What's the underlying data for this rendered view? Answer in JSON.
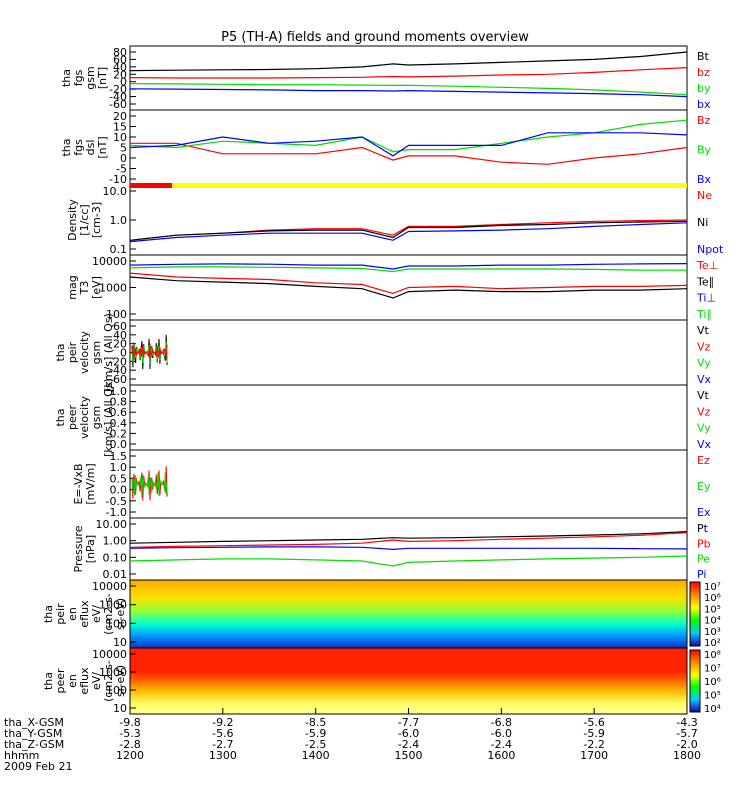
{
  "title": "P5 (TH-A) fields and ground moments overview",
  "date_label": "2009 Feb 21",
  "time_axis": {
    "ticks": [
      "1200",
      "1300",
      "1400",
      "1500",
      "1600",
      "1700",
      "1800"
    ],
    "rows": [
      {
        "name": "tha_X-GSM",
        "values": [
          "-9.8",
          "-9.2",
          "-8.5",
          "-7.7",
          "-6.8",
          "-5.6",
          "-4.3"
        ]
      },
      {
        "name": "tha_Y-GSM",
        "values": [
          "-5.3",
          "-5.6",
          "-5.9",
          "-6.0",
          "-6.0",
          "-5.9",
          "-5.7"
        ]
      },
      {
        "name": "tha_Z-GSM",
        "values": [
          "-2.8",
          "-2.7",
          "-2.5",
          "-2.4",
          "-2.4",
          "-2.2",
          "-2.0"
        ]
      },
      {
        "name": "hhmm",
        "values": []
      }
    ]
  },
  "colors": {
    "black": "#000000",
    "red": "#ff0000",
    "green": "#00dd00",
    "blue": "#0000ff",
    "yellow": "#ffff00"
  },
  "panels": [
    {
      "id": "fgs-gsm",
      "ylabel": [
        "tha",
        "fgs",
        "gsm",
        "[nT]"
      ],
      "ticks": [
        "80",
        "60",
        "40",
        "20",
        "0",
        "-20",
        "-40",
        "-60"
      ],
      "legend": [
        {
          "t": "Bt",
          "c": "black"
        },
        {
          "t": "bz",
          "c": "red"
        },
        {
          "t": "by",
          "c": "green"
        },
        {
          "t": "bx",
          "c": "blue"
        }
      ]
    },
    {
      "id": "fgs-dsl",
      "ylabel": [
        "tha",
        "fgs",
        "dsl",
        "[nT]"
      ],
      "ticks": [
        "20",
        "15",
        "10",
        "5",
        "0",
        "-5",
        "-10"
      ],
      "legend": [
        {
          "t": "Bz",
          "c": "red"
        },
        {
          "t": "By",
          "c": "green"
        },
        {
          "t": "Bx",
          "c": "blue"
        }
      ]
    },
    {
      "id": "density",
      "ylabel": [
        "Density",
        "[1/cc]",
        "[cm-3]"
      ],
      "ticks": [
        "10.0",
        "1.0",
        "0.1"
      ],
      "legend": [
        {
          "t": "Ne",
          "c": "red"
        },
        {
          "t": "Ni",
          "c": "black"
        },
        {
          "t": "Npot",
          "c": "blue"
        }
      ]
    },
    {
      "id": "temp",
      "ylabel": [
        "mag",
        "T3",
        "[eV]"
      ],
      "ticks": [
        "10000",
        "1000",
        "100"
      ],
      "legend": [
        {
          "t": "Te⊥",
          "c": "red"
        },
        {
          "t": "Te∥",
          "c": "black"
        },
        {
          "t": "Ti⊥",
          "c": "blue"
        },
        {
          "t": "Ti∥",
          "c": "green"
        }
      ]
    },
    {
      "id": "peir-vel",
      "ylabel": [
        "tha",
        "peir",
        "velocity",
        "gsm",
        "[km/s] (All Qs)"
      ],
      "ticks": [
        "60",
        "40",
        "20",
        "0",
        "-20",
        "-40",
        "-60"
      ],
      "legend": [
        {
          "t": "Vt",
          "c": "black"
        },
        {
          "t": "Vz",
          "c": "red"
        },
        {
          "t": "Vy",
          "c": "green"
        },
        {
          "t": "Vx",
          "c": "blue"
        }
      ]
    },
    {
      "id": "peer-vel",
      "ylabel": [
        "tha",
        "peer",
        "velocity",
        "gsm",
        "[km/s] (All Qs)"
      ],
      "ticks": [
        "1.0",
        "0.8",
        "0.6",
        "0.4",
        "0.2",
        "0.0"
      ],
      "legend": [
        {
          "t": "Vt",
          "c": "black"
        },
        {
          "t": "Vz",
          "c": "red"
        },
        {
          "t": "Vy",
          "c": "green"
        },
        {
          "t": "Vx",
          "c": "blue"
        }
      ]
    },
    {
      "id": "efield",
      "ylabel": [
        "E=-VxB",
        "[mV/m]"
      ],
      "ticks": [
        "1.5",
        "1.0",
        "0.5",
        "0.0",
        "-0.5",
        "-1.0"
      ],
      "legend": [
        {
          "t": "Ez",
          "c": "red"
        },
        {
          "t": "Ey",
          "c": "green"
        },
        {
          "t": "Ex",
          "c": "blue"
        }
      ]
    },
    {
      "id": "pressure",
      "ylabel": [
        "Pressure",
        "[nPa]"
      ],
      "ticks": [
        "10.00",
        "1.00",
        "0.10",
        "0.01"
      ],
      "legend": [
        {
          "t": "Pt",
          "c": "black"
        },
        {
          "t": "Pb",
          "c": "red"
        },
        {
          "t": "Pe",
          "c": "green"
        },
        {
          "t": "Pi",
          "c": "blue"
        }
      ]
    },
    {
      "id": "peir-spec",
      "ylabel": [
        "tha",
        "peir",
        "en",
        "eflux",
        "eV/",
        "(cm2-s-",
        "sr-eV)"
      ],
      "ticks": [
        "10000",
        "1000",
        "100",
        "10"
      ],
      "colorbar": [
        "10⁷",
        "10⁶",
        "10⁵",
        "10⁴",
        "10³",
        "10²"
      ]
    },
    {
      "id": "peer-spec",
      "ylabel": [
        "tha",
        "peer",
        "en",
        "eflux",
        "eV/",
        "(cm2-s-",
        "sr-eV)"
      ],
      "ticks": [
        "10000",
        "1000",
        "100",
        "10"
      ],
      "colorbar": [
        "10⁸",
        "10⁷",
        "10⁶",
        "10⁵",
        "10⁴"
      ]
    }
  ],
  "chart_data": {
    "type": "line",
    "title": "P5 (TH-A) fields and ground moments overview",
    "x_unit": "hhmm",
    "x": [
      "1200",
      "1230",
      "1300",
      "1330",
      "1400",
      "1430",
      "1450",
      "1500",
      "1530",
      "1600",
      "1630",
      "1700",
      "1730",
      "1800"
    ],
    "series": [
      {
        "panel": "fgs-gsm",
        "name": "Bt",
        "values": [
          30,
          31,
          32,
          33,
          35,
          40,
          48,
          45,
          48,
          52,
          56,
          60,
          68,
          80
        ]
      },
      {
        "panel": "fgs-gsm",
        "name": "bz",
        "values": [
          11,
          10,
          10,
          10,
          11,
          12,
          14,
          13,
          15,
          18,
          20,
          25,
          32,
          38
        ]
      },
      {
        "panel": "fgs-gsm",
        "name": "by",
        "values": [
          -5,
          -6,
          -7,
          -8,
          -8,
          -9,
          -10,
          -10,
          -12,
          -15,
          -18,
          -22,
          -28,
          -35
        ]
      },
      {
        "panel": "fgs-gsm",
        "name": "bx",
        "values": [
          -19,
          -20,
          -21,
          -22,
          -24,
          -24,
          -25,
          -24,
          -26,
          -28,
          -30,
          -32,
          -35,
          -40
        ]
      },
      {
        "panel": "fgs-dsl",
        "name": "Bz",
        "values": [
          7,
          7,
          2,
          2,
          2,
          5,
          -1,
          1,
          1,
          -2,
          -3,
          0,
          2,
          5
        ]
      },
      {
        "panel": "fgs-dsl",
        "name": "By",
        "values": [
          6,
          5,
          8,
          7,
          6,
          10,
          3,
          4,
          4,
          7,
          10,
          12,
          16,
          18
        ]
      },
      {
        "panel": "fgs-dsl",
        "name": "Bx",
        "values": [
          5,
          6,
          10,
          7,
          8,
          10,
          1,
          6,
          6,
          6,
          12,
          12,
          12,
          11
        ]
      },
      {
        "panel": "density",
        "name": "Ne",
        "values": [
          0.2,
          0.3,
          0.35,
          0.45,
          0.5,
          0.5,
          0.3,
          0.6,
          0.6,
          0.7,
          0.8,
          0.9,
          0.95,
          1.0
        ]
      },
      {
        "panel": "density",
        "name": "Ni",
        "values": [
          0.2,
          0.3,
          0.35,
          0.42,
          0.45,
          0.45,
          0.25,
          0.55,
          0.55,
          0.65,
          0.7,
          0.8,
          0.85,
          0.9
        ]
      },
      {
        "panel": "density",
        "name": "Npot",
        "values": [
          0.18,
          0.25,
          0.3,
          0.35,
          0.35,
          0.35,
          0.2,
          0.4,
          0.42,
          0.45,
          0.5,
          0.6,
          0.7,
          0.8
        ]
      },
      {
        "panel": "temp",
        "name": "Ti⊥",
        "values": [
          7000,
          7500,
          7800,
          7600,
          7000,
          7000,
          5000,
          6500,
          6500,
          7000,
          7000,
          7500,
          7800,
          8000
        ]
      },
      {
        "panel": "temp",
        "name": "Ti∥",
        "values": [
          5500,
          6000,
          6000,
          5800,
          5500,
          5200,
          4000,
          5000,
          5000,
          5000,
          5000,
          4800,
          4500,
          4500
        ]
      },
      {
        "panel": "temp",
        "name": "Te⊥",
        "values": [
          3500,
          2500,
          2200,
          2000,
          1500,
          1300,
          600,
          1000,
          1100,
          900,
          1000,
          1100,
          1100,
          1200
        ]
      },
      {
        "panel": "temp",
        "name": "Te∥",
        "values": [
          2500,
          1800,
          1600,
          1400,
          1100,
          900,
          400,
          700,
          800,
          700,
          700,
          800,
          800,
          900
        ]
      },
      {
        "panel": "pressure",
        "name": "Pt",
        "values": [
          0.7,
          0.8,
          0.9,
          1.0,
          1.1,
          1.2,
          1.5,
          1.4,
          1.5,
          1.7,
          1.9,
          2.2,
          2.6,
          3.5
        ]
      },
      {
        "panel": "pressure",
        "name": "Pb",
        "values": [
          0.4,
          0.45,
          0.5,
          0.55,
          0.6,
          0.7,
          1.1,
          0.9,
          1.0,
          1.2,
          1.4,
          1.7,
          2.1,
          3.0
        ]
      },
      {
        "panel": "pressure",
        "name": "Pi",
        "values": [
          0.35,
          0.38,
          0.4,
          0.42,
          0.42,
          0.4,
          0.3,
          0.35,
          0.35,
          0.35,
          0.35,
          0.35,
          0.33,
          0.32
        ]
      },
      {
        "panel": "pressure",
        "name": "Pe",
        "values": [
          0.06,
          0.07,
          0.08,
          0.08,
          0.07,
          0.06,
          0.03,
          0.05,
          0.06,
          0.07,
          0.08,
          0.09,
          0.1,
          0.12
        ]
      }
    ],
    "ylim_fgs_gsm": [
      -60,
      80
    ],
    "ylim_fgs_dsl": [
      -10,
      20
    ],
    "ylim_density": [
      0.1,
      10
    ],
    "ylim_temp": [
      100,
      10000
    ],
    "ylim_pressure": [
      0.01,
      10
    ],
    "log_scale_panels": [
      "density",
      "temp",
      "pressure",
      "peir-spec",
      "peer-spec"
    ]
  }
}
